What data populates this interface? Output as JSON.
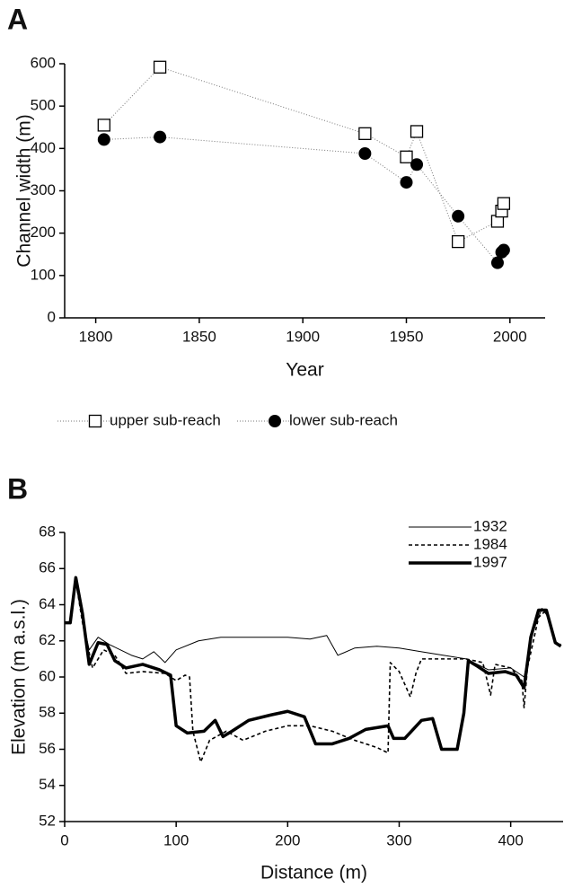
{
  "chart_data": [
    {
      "type": "scatter",
      "label": "A",
      "xlabel": "Year",
      "ylabel": "Channel width (m)",
      "xlim": [
        1785,
        2017
      ],
      "xticks": [
        1800,
        1850,
        1900,
        1950,
        2000
      ],
      "ylim": [
        0,
        600
      ],
      "yticks": [
        0,
        100,
        200,
        300,
        400,
        500,
        600
      ],
      "legend": "bottom",
      "series": [
        {
          "name": "upper sub-reach",
          "marker": "square",
          "color": "#000",
          "x": [
            1804,
            1831,
            1930,
            1950,
            1955,
            1975,
            1994,
            1996,
            1997
          ],
          "values": [
            455,
            592,
            435,
            380,
            440,
            180,
            228,
            252,
            270
          ]
        },
        {
          "name": "lower sub-reach",
          "marker": "circle",
          "color": "#000",
          "x": [
            1804,
            1831,
            1930,
            1950,
            1955,
            1975,
            1994,
            1996,
            1997
          ],
          "values": [
            421,
            427,
            388,
            320,
            362,
            240,
            130,
            155,
            160
          ]
        }
      ]
    },
    {
      "type": "line",
      "label": "B",
      "xlabel": "Distance (m)",
      "ylabel": "Elevation (m a.s.l.)",
      "xlim": [
        0,
        447
      ],
      "xticks": [
        0,
        100,
        200,
        300,
        400
      ],
      "ylim": [
        52,
        68
      ],
      "yticks": [
        52,
        54,
        56,
        58,
        60,
        62,
        64,
        66,
        68
      ],
      "legend": "top-right",
      "series": [
        {
          "name": "1932",
          "color": "#000",
          "line_width": 1,
          "dash": "none",
          "x": [
            0,
            5,
            10,
            15,
            22,
            30,
            40,
            50,
            60,
            70,
            80,
            90,
            100,
            120,
            140,
            160,
            180,
            200,
            220,
            235,
            245,
            260,
            280,
            300,
            320,
            340,
            360,
            380,
            400,
            412,
            420,
            428,
            435,
            440,
            445
          ],
          "values": [
            63,
            63,
            65.3,
            63.5,
            61.5,
            62.2,
            61.8,
            61.5,
            61.2,
            61.0,
            61.4,
            60.8,
            61.5,
            62.0,
            62.2,
            62.2,
            62.2,
            62.2,
            62.1,
            62.3,
            61.2,
            61.6,
            61.7,
            61.6,
            61.4,
            61.2,
            61.0,
            60.4,
            60.5,
            60.0,
            62.5,
            63.8,
            63.2,
            61.9,
            61.8
          ]
        },
        {
          "name": "1984",
          "color": "#000",
          "line_width": 1.6,
          "dash": "4 3",
          "x": [
            0,
            5,
            10,
            16,
            25,
            35,
            45,
            55,
            70,
            90,
            100,
            108,
            112,
            115,
            122,
            130,
            145,
            160,
            180,
            200,
            220,
            240,
            260,
            280,
            290,
            292,
            300,
            310,
            315,
            320,
            340,
            360,
            375,
            382,
            386,
            400,
            410,
            412,
            415,
            425,
            432,
            440,
            445
          ],
          "values": [
            63,
            63,
            65.3,
            63,
            60.5,
            61.5,
            61.2,
            60.2,
            60.3,
            60.2,
            59.8,
            60.1,
            60,
            57,
            55.3,
            56.5,
            57,
            56.5,
            57,
            57.3,
            57.3,
            57,
            56.5,
            56.1,
            55.8,
            60.8,
            60.3,
            58.9,
            60.2,
            61,
            61,
            61,
            60.8,
            59,
            60.7,
            60.5,
            59.8,
            58.3,
            60.5,
            63.3,
            63.7,
            61.9,
            61.8
          ]
        },
        {
          "name": "1997",
          "color": "#000",
          "line_width": 3.5,
          "dash": "none",
          "x": [
            0,
            5,
            10,
            16,
            22,
            30,
            38,
            45,
            55,
            70,
            85,
            95,
            100,
            110,
            125,
            135,
            142,
            150,
            165,
            185,
            200,
            215,
            225,
            240,
            255,
            270,
            290,
            295,
            305,
            320,
            330,
            338,
            352,
            358,
            362,
            370,
            380,
            395,
            405,
            412,
            418,
            425,
            432,
            440,
            445
          ],
          "values": [
            63,
            63,
            65.5,
            63.5,
            60.7,
            61.9,
            61.8,
            60.9,
            60.5,
            60.7,
            60.4,
            60.1,
            57.3,
            56.9,
            57.0,
            57.6,
            56.7,
            57.0,
            57.6,
            57.9,
            58.1,
            57.8,
            56.3,
            56.3,
            56.6,
            57.1,
            57.3,
            56.6,
            56.6,
            57.6,
            57.7,
            56.0,
            56.0,
            58.0,
            60.9,
            60.6,
            60.2,
            60.3,
            60.1,
            59.4,
            62.2,
            63.7,
            63.7,
            61.9,
            61.7
          ]
        }
      ]
    }
  ]
}
